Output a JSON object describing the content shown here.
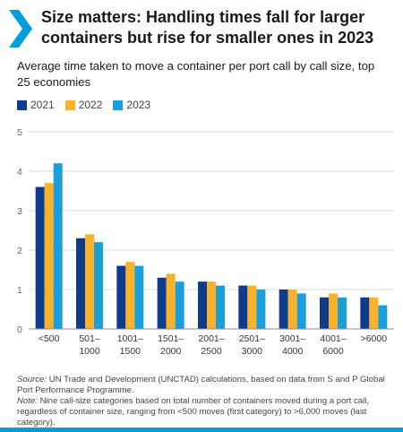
{
  "title": "Size matters: Handling times fall for larger containers but rise for smaller ones in 2023",
  "subtitle": "Average time taken to move a container per port call by call size, top 25 economies",
  "source_label": "Source:",
  "source_text": " UN Trade and Development (UNCTAD) calculations, based on data from S and P Global Port Performance Programme.",
  "note_label": "Note:",
  "note_text": " Nine call-size categories based on total number of containers moved during a port call, regardless of container size, ranging from <500 moves (first category) to >6,000 moves (last category).",
  "colors": {
    "chevron": "#009edb",
    "bottom_bar": "#009edb",
    "grid": "#d9d9d9",
    "axis": "#8c8c8c",
    "tick_text": "#666666"
  },
  "chart_data": {
    "type": "bar",
    "categories": [
      [
        "<500"
      ],
      [
        "501–",
        "1000"
      ],
      [
        "1001–",
        "1500"
      ],
      [
        "1501–",
        "2000"
      ],
      [
        "2001–",
        "2500"
      ],
      [
        "2501–",
        "3000"
      ],
      [
        "3001–",
        "4000"
      ],
      [
        "4001–",
        "6000"
      ],
      [
        ">6000"
      ]
    ],
    "series": [
      {
        "name": "2021",
        "color": "#0f3b8c",
        "values": [
          3.6,
          2.3,
          1.6,
          1.3,
          1.2,
          1.1,
          1.0,
          0.8,
          0.8
        ]
      },
      {
        "name": "2022",
        "color": "#fbb22b",
        "values": [
          3.7,
          2.4,
          1.7,
          1.4,
          1.2,
          1.1,
          1.0,
          0.9,
          0.8
        ]
      },
      {
        "name": "2023",
        "color": "#1a9fdb",
        "values": [
          4.2,
          2.2,
          1.6,
          1.2,
          1.1,
          1.0,
          0.9,
          0.8,
          0.6
        ]
      }
    ],
    "y_ticks": [
      "0",
      "1",
      "2",
      "3",
      "4",
      "5"
    ],
    "ylim": [
      0,
      5
    ],
    "grid": true,
    "legend_position": "top-left"
  }
}
